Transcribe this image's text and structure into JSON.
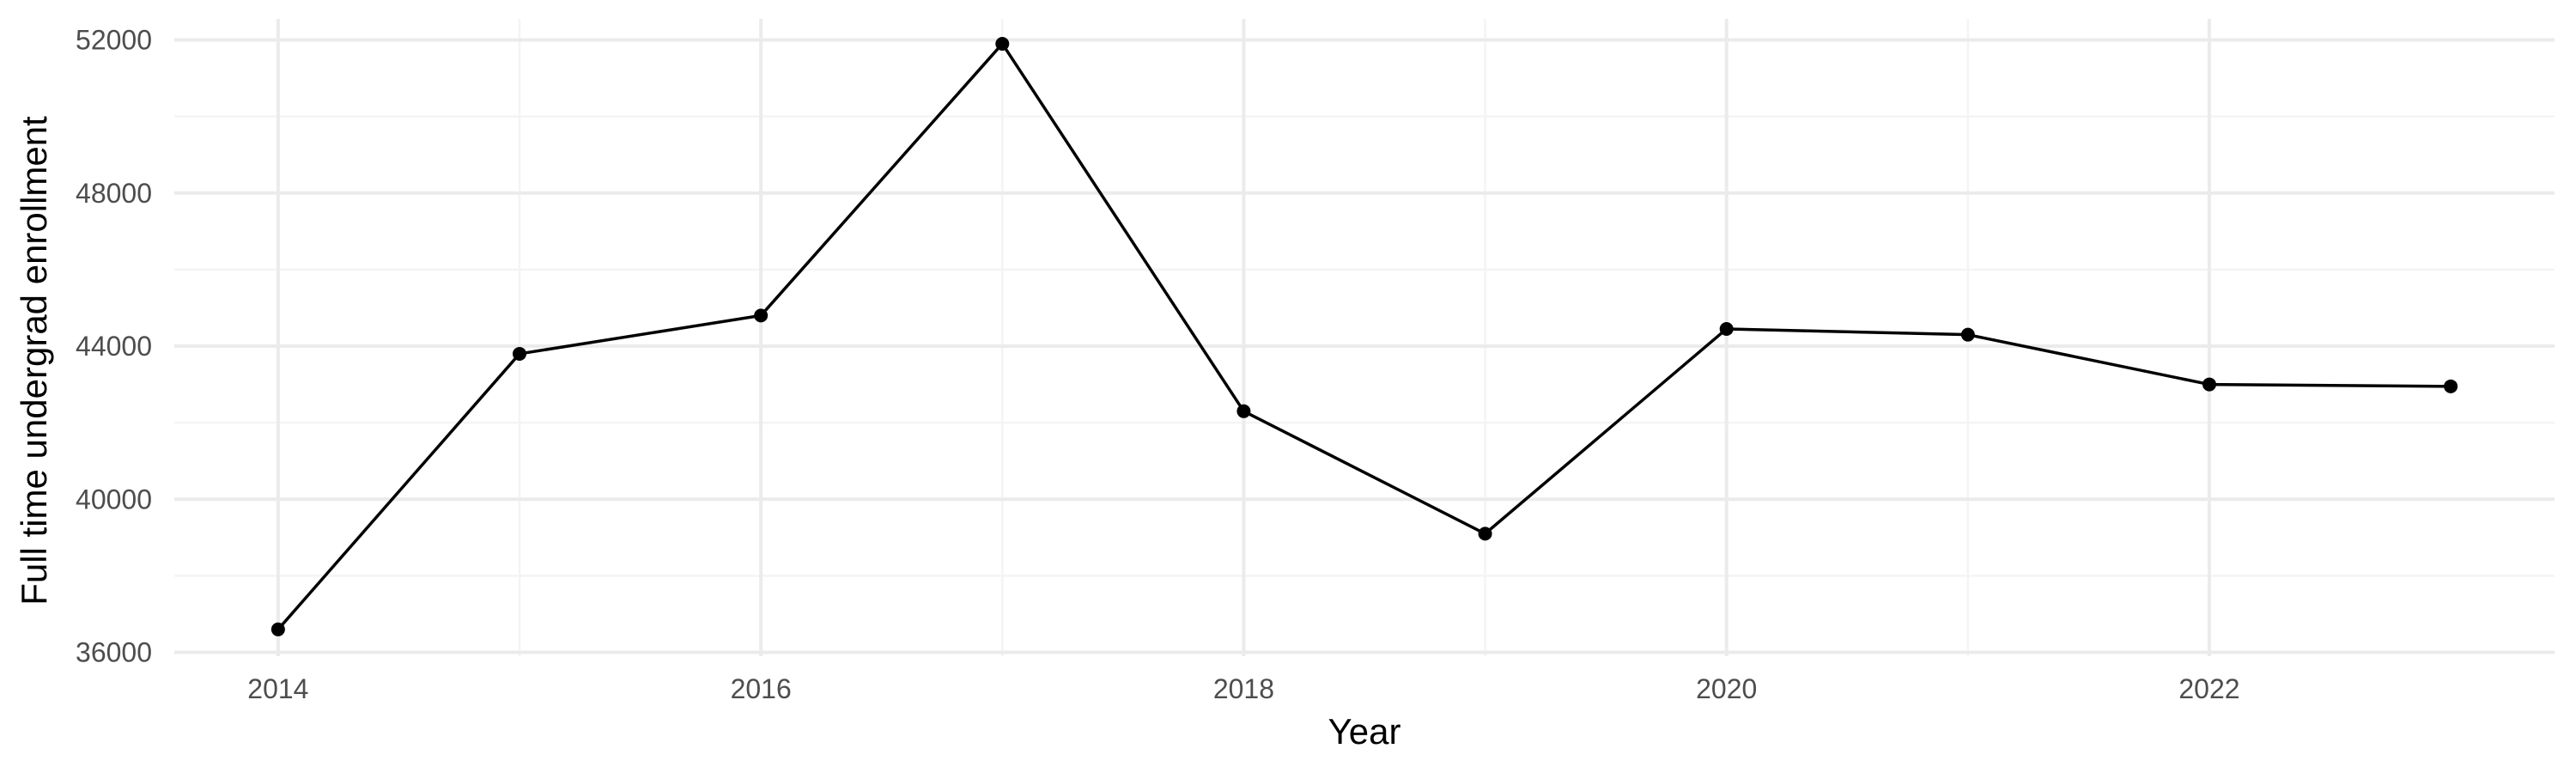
{
  "chart_data": {
    "type": "line",
    "title": "",
    "xlabel": "Year",
    "ylabel": "Full time undergrad enrollment",
    "x": [
      2014,
      2015,
      2016,
      2017,
      2018,
      2019,
      2020,
      2021,
      2022,
      2023
    ],
    "series": [
      {
        "values": [
          36600,
          43800,
          44800,
          51900,
          42300,
          39100,
          44450,
          44300,
          43000,
          42950
        ]
      }
    ],
    "x_ticks": [
      "2014",
      "2016",
      "2018",
      "2020",
      "2022"
    ],
    "y_ticks": [
      "36000",
      "40000",
      "44000",
      "48000",
      "52000"
    ],
    "xlim": [
      2013.57,
      2023.43
    ],
    "ylim": [
      35900,
      52550
    ],
    "grid": true,
    "line_color": "#000000",
    "point_color": "#000000",
    "grid_color": "#ebebeb"
  }
}
